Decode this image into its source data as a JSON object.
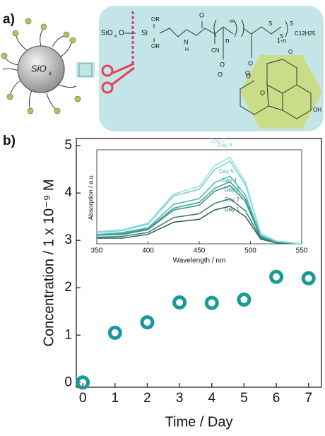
{
  "panels": {
    "a": "a)",
    "b": "b)"
  },
  "diagram": {
    "labels": [
      "SiO",
      "x",
      "SiO",
      "x",
      "O",
      "Si",
      "OR",
      "OR",
      "N",
      "H",
      "O",
      "CN",
      "n",
      "O",
      "O",
      "∞",
      "O",
      "O",
      "1-n",
      "S",
      "S",
      "S",
      "C12H25",
      "O",
      "O",
      "O",
      "OH"
    ]
  },
  "chart_data": [
    {
      "type": "scatter",
      "x_label": "Time / Day",
      "y_label": "Concentration / 1 x 10⁻⁹ M",
      "x": [
        0,
        1,
        2,
        3,
        4,
        5,
        6,
        7
      ],
      "values": [
        0,
        1.05,
        1.27,
        1.69,
        1.68,
        1.75,
        2.23,
        2.2
      ],
      "color": "#1a9a96",
      "xlim": [
        -0.2,
        7.4
      ],
      "ylim": [
        -0.1,
        5.15
      ],
      "xticks": [
        0,
        1,
        2,
        3,
        4,
        5,
        6,
        7
      ],
      "yticks": [
        0,
        1,
        2,
        3,
        4,
        5
      ]
    },
    {
      "type": "line",
      "x_label": "Wavelength / nm",
      "y_label": "Absorption / a.u.",
      "x": [
        350,
        375,
        400,
        425,
        450,
        465,
        480,
        495,
        510,
        525,
        550
      ],
      "xlim": [
        350,
        550
      ],
      "xticks": [
        350,
        400,
        450,
        500,
        550
      ],
      "ylim": [
        0,
        1
      ],
      "series": [
        {
          "name": "Day 1",
          "color": "#2f5e55",
          "values": [
            0.06,
            0.06,
            0.1,
            0.23,
            0.26,
            0.36,
            0.4,
            0.29,
            0.05,
            0.01,
            0.0
          ]
        },
        {
          "name": "Day 2",
          "color": "#3b7a70",
          "values": [
            0.07,
            0.08,
            0.12,
            0.28,
            0.32,
            0.43,
            0.48,
            0.35,
            0.06,
            0.01,
            0.0
          ]
        },
        {
          "name": "Day 3",
          "color": "#2f8f86",
          "values": [
            0.09,
            0.1,
            0.15,
            0.36,
            0.41,
            0.56,
            0.62,
            0.45,
            0.07,
            0.02,
            0.0
          ]
        },
        {
          "name": "Day 4",
          "color": "#3aa39a",
          "values": [
            0.09,
            0.11,
            0.16,
            0.38,
            0.44,
            0.59,
            0.66,
            0.48,
            0.08,
            0.02,
            0.0
          ]
        },
        {
          "name": "Day 5",
          "color": "#4fb8b2",
          "values": [
            0.1,
            0.12,
            0.17,
            0.42,
            0.48,
            0.65,
            0.72,
            0.52,
            0.09,
            0.02,
            0.0
          ]
        },
        {
          "name": "Day 6",
          "color": "#72cfd2",
          "values": [
            0.12,
            0.14,
            0.21,
            0.51,
            0.58,
            0.79,
            0.88,
            0.63,
            0.11,
            0.03,
            0.0
          ]
        },
        {
          "name": "Day 7",
          "color": "#92dde0",
          "values": [
            0.13,
            0.15,
            0.22,
            0.53,
            0.61,
            0.83,
            0.92,
            0.66,
            0.11,
            0.03,
            0.0
          ]
        }
      ]
    }
  ]
}
